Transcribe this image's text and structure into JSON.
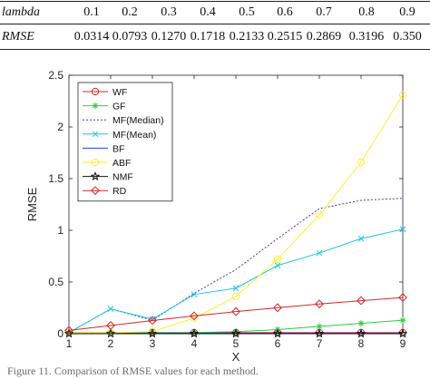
{
  "table": {
    "rows": [
      {
        "header": "lambda",
        "cells": [
          "0.1",
          "0.2",
          "0.3",
          "0.4",
          "0.5",
          "0.6",
          "0.7",
          "0.8",
          "0.9"
        ]
      },
      {
        "header": "RMSE",
        "cells": [
          "0.0314",
          "0.0793",
          "0.1270",
          "0.1718",
          "0.2133",
          "0.2515",
          "0.2869",
          "0.3196",
          "0.350"
        ]
      }
    ]
  },
  "caption": "Figure 11. Comparison of RMSE values for each method.",
  "chart_data": {
    "type": "line",
    "title": "",
    "xlabel": "X",
    "ylabel": "RMSE",
    "xlim": [
      1,
      9
    ],
    "ylim": [
      0,
      2.5
    ],
    "xticks": [
      "1",
      "2",
      "3",
      "4",
      "5",
      "6",
      "7",
      "8",
      "9"
    ],
    "yticks": [
      "0",
      "0.5",
      "1",
      "1.5",
      "2",
      "2.5"
    ],
    "grid": false,
    "legend_position": "top-left",
    "x": [
      1,
      2,
      3,
      4,
      5,
      6,
      7,
      8,
      9
    ],
    "series": [
      {
        "name": "WF",
        "color": "#d62728",
        "marker": "circle",
        "dash": "solid",
        "values": [
          0.01,
          0.01,
          0.01,
          0.01,
          0.01,
          0.01,
          0.01,
          0.01,
          0.01
        ]
      },
      {
        "name": "GF",
        "color": "#2ecc40",
        "marker": "star",
        "dash": "solid",
        "values": [
          0.005,
          0.01,
          0.01,
          0.01,
          0.02,
          0.04,
          0.07,
          0.1,
          0.13
        ]
      },
      {
        "name": "MF(Median)",
        "color": "#3b3bb0",
        "marker": "none",
        "dash": "dotted",
        "values": [
          0.01,
          0.24,
          0.13,
          0.39,
          0.62,
          0.92,
          1.21,
          1.29,
          1.31
        ]
      },
      {
        "name": "MF(Mean)",
        "color": "#1fc4e0",
        "marker": "x",
        "dash": "solid",
        "values": [
          0.01,
          0.24,
          0.14,
          0.38,
          0.44,
          0.66,
          0.78,
          0.92,
          1.01
        ]
      },
      {
        "name": "BF",
        "color": "#1f3df0",
        "marker": "none",
        "dash": "solid",
        "values": [
          0.005,
          0.005,
          0.005,
          0.005,
          0.005,
          0.005,
          0.005,
          0.005,
          0.005
        ]
      },
      {
        "name": "ABF",
        "color": "#ffee33",
        "marker": "circle",
        "dash": "solid",
        "values": [
          0.01,
          0.01,
          0.02,
          0.15,
          0.36,
          0.72,
          1.15,
          1.66,
          2.31
        ]
      },
      {
        "name": "NMF",
        "color": "#111111",
        "marker": "pentagram",
        "dash": "solid",
        "values": [
          0.0,
          0.0,
          0.0,
          0.0,
          0.0,
          0.0,
          0.0,
          0.0,
          0.0
        ]
      },
      {
        "name": "RD",
        "color": "#d62728",
        "marker": "diamond",
        "dash": "solid",
        "values": [
          0.0314,
          0.0793,
          0.127,
          0.1718,
          0.2133,
          0.2515,
          0.2869,
          0.3196,
          0.35
        ]
      }
    ]
  }
}
